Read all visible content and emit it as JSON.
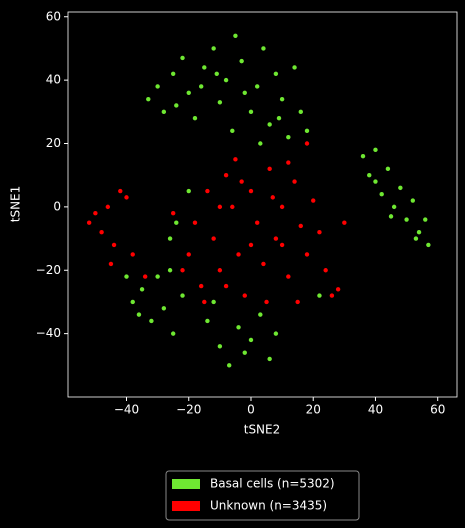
{
  "chart_data": {
    "type": "scatter",
    "xlabel": "tSNE2",
    "ylabel": "tSNE1",
    "xlim": [
      -58.8,
      66.2
    ],
    "ylim": [
      -60,
      61.5
    ],
    "xticks": [
      {
        "value": -40,
        "label": "−40"
      },
      {
        "value": -20,
        "label": "−20"
      },
      0,
      20,
      40,
      60
    ],
    "yticks": [
      {
        "value": -40,
        "label": "−40"
      },
      {
        "value": -20,
        "label": "−20"
      },
      0,
      20,
      40,
      60
    ],
    "legend": "bottom",
    "series": [
      {
        "name": "Basal cells (n=5302)",
        "color": "#6fe832",
        "x": [
          -33,
          -30,
          -28,
          -25,
          -22,
          -20,
          -18,
          -15,
          -12,
          -10,
          -8,
          -5,
          -3,
          0,
          2,
          4,
          6,
          8,
          10,
          12,
          14,
          16,
          18,
          -16,
          -6,
          -24,
          3,
          -2,
          9,
          -11,
          36,
          38,
          40,
          42,
          44,
          46,
          48,
          50,
          52,
          54,
          56,
          57,
          40,
          45,
          53,
          -40,
          -38,
          -35,
          -32,
          -30,
          -28,
          -25,
          -22,
          -36,
          -26,
          -14,
          -10,
          -7,
          -4,
          -2,
          0,
          3,
          6,
          8,
          -12,
          -24,
          -26,
          22,
          -20
        ],
        "values": [
          34,
          38,
          30,
          42,
          47,
          36,
          28,
          44,
          50,
          33,
          40,
          54,
          46,
          30,
          38,
          50,
          26,
          42,
          34,
          22,
          44,
          30,
          24,
          38,
          24,
          32,
          20,
          36,
          28,
          42,
          16,
          10,
          18,
          4,
          12,
          0,
          6,
          -4,
          2,
          -8,
          -4,
          -12,
          8,
          -3,
          -10,
          -22,
          -30,
          -26,
          -36,
          -22,
          -32,
          -40,
          -28,
          -34,
          -20,
          -36,
          -44,
          -50,
          -38,
          -46,
          -42,
          -34,
          -48,
          -40,
          -30,
          -5,
          -10,
          -28,
          5
        ]
      },
      {
        "name": "Unknown (n=3435)",
        "color": "#ff0000",
        "x": [
          -52,
          -50,
          -48,
          -46,
          -44,
          -42,
          -40,
          -45,
          -38,
          -34,
          -20,
          -18,
          -16,
          -14,
          -12,
          -10,
          -8,
          -6,
          -4,
          -2,
          0,
          2,
          4,
          6,
          8,
          10,
          12,
          14,
          16,
          18,
          20,
          22,
          24,
          26,
          -15,
          -5,
          5,
          15,
          -10,
          0,
          10,
          -22,
          -8,
          12,
          -3,
          7,
          28,
          -25,
          30,
          18
        ],
        "values": [
          -5,
          -2,
          -8,
          0,
          -12,
          5,
          3,
          -18,
          -15,
          -22,
          -15,
          -5,
          -25,
          5,
          -10,
          -20,
          10,
          0,
          -15,
          -28,
          5,
          -5,
          -18,
          12,
          -10,
          0,
          -22,
          8,
          -6,
          -15,
          2,
          -8,
          -20,
          -28,
          -30,
          15,
          -30,
          -30,
          0,
          -12,
          -12,
          -20,
          -25,
          14,
          8,
          3,
          -26,
          -2,
          -5,
          20
        ]
      }
    ]
  }
}
